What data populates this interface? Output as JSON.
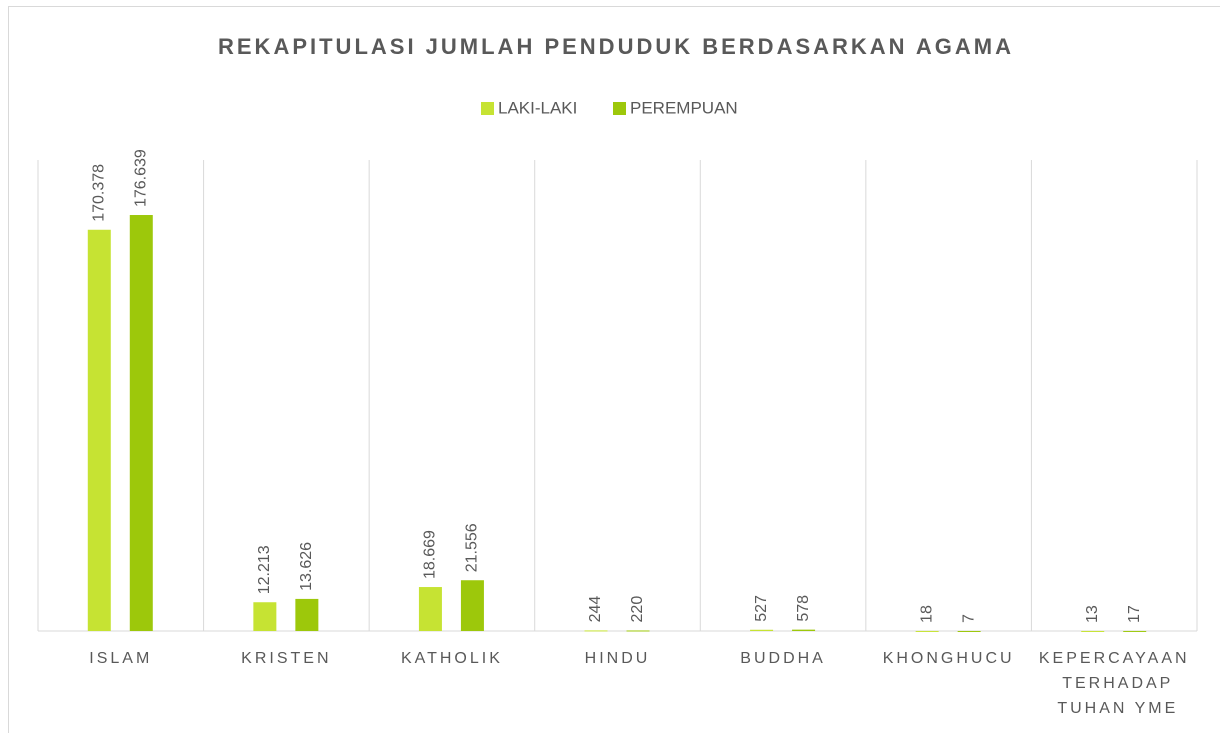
{
  "chart_data": {
    "type": "bar",
    "title": "REKAPITULASI JUMLAH PENDUDUK BERDASARKAN AGAMA",
    "categories": [
      "ISLAM",
      "KRISTEN",
      "KATHOLIK",
      "HINDU",
      "BUDDHA",
      "KHONGHUCU",
      "KEPERCAYAAN TERHADAP TUHAN YME"
    ],
    "series": [
      {
        "name": "LAKI-LAKI",
        "color": "#c6e333",
        "values": [
          170378,
          12213,
          18669,
          244,
          527,
          18,
          13
        ],
        "value_labels": [
          "170.378",
          "12.213",
          "18.669",
          "244",
          "527",
          "18",
          "13"
        ]
      },
      {
        "name": "PEREMPUAN",
        "color": "#9dc80b",
        "values": [
          176639,
          13626,
          21556,
          220,
          578,
          7,
          17
        ],
        "value_labels": [
          "176.639",
          "13.626",
          "21.556",
          "220",
          "578",
          "7",
          "17"
        ]
      }
    ],
    "ylim": [
      0,
      200000
    ],
    "legend": "top"
  }
}
